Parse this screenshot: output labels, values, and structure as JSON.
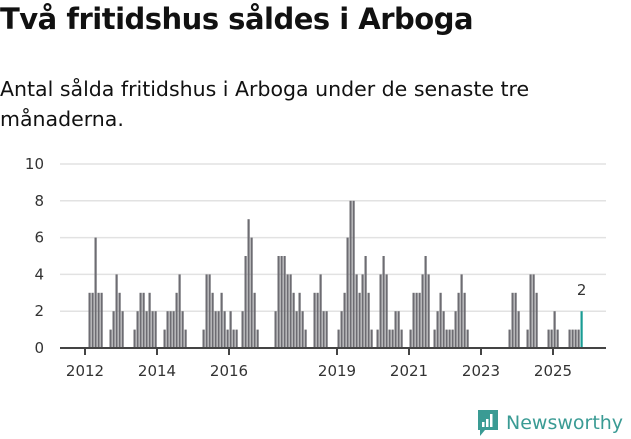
{
  "header": {
    "title": "Två fritidshus såldes i Arboga",
    "subtitle": "Antal sålda fritidshus i Arboga under de senaste tre månaderna."
  },
  "branding": {
    "name": "Newsworthy",
    "icon": "newsworthy-logo-icon",
    "color": "#3a9b94"
  },
  "colors": {
    "bar": "#6d6c72",
    "highlight": "#1a9c94",
    "grid": "#e2e2e2",
    "axis": "#444444"
  },
  "chart_data": {
    "type": "bar",
    "title": "Två fritidshus såldes i Arboga",
    "subtitle": "Antal sålda fritidshus i Arboga under de senaste tre månaderna.",
    "xlabel": "",
    "ylabel": "",
    "ylim": [
      0,
      10
    ],
    "yticks": [
      0,
      2,
      4,
      6,
      8,
      10
    ],
    "xticks": [
      "2012",
      "2014",
      "2016",
      "2019",
      "2021",
      "2023",
      "2025"
    ],
    "grid": true,
    "legend": "none",
    "annotation": {
      "label": "2",
      "month": "2025-10"
    },
    "start": "2012-01",
    "values": [
      0,
      3,
      3,
      6,
      3,
      3,
      0,
      0,
      1,
      2,
      4,
      3,
      2,
      0,
      0,
      0,
      1,
      2,
      3,
      3,
      2,
      3,
      2,
      2,
      0,
      0,
      1,
      2,
      2,
      2,
      3,
      4,
      2,
      1,
      0,
      0,
      0,
      0,
      0,
      1,
      4,
      4,
      3,
      2,
      2,
      3,
      2,
      1,
      2,
      1,
      1,
      0,
      2,
      5,
      7,
      6,
      3,
      1,
      0,
      0,
      0,
      0,
      0,
      2,
      5,
      5,
      5,
      4,
      4,
      3,
      2,
      3,
      2,
      1,
      0,
      0,
      3,
      3,
      4,
      2,
      2,
      0,
      0,
      0,
      1,
      2,
      3,
      6,
      8,
      8,
      4,
      3,
      4,
      5,
      3,
      1,
      0,
      1,
      4,
      5,
      4,
      1,
      1,
      2,
      2,
      1,
      0,
      0,
      1,
      3,
      3,
      3,
      4,
      5,
      4,
      0,
      1,
      2,
      3,
      2,
      1,
      1,
      1,
      2,
      3,
      4,
      3,
      1,
      0,
      0,
      0,
      0,
      0,
      0,
      0,
      0,
      0,
      0,
      0,
      0,
      0,
      1,
      3,
      3,
      2,
      0,
      0,
      1,
      4,
      4,
      3,
      0,
      0,
      0,
      1,
      1,
      2,
      1,
      0,
      0,
      0,
      1,
      1,
      1,
      1,
      2
    ]
  }
}
